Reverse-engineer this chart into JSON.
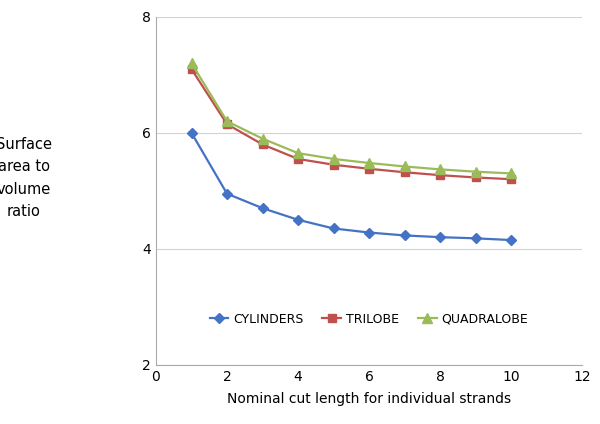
{
  "x": [
    1,
    2,
    3,
    4,
    5,
    6,
    7,
    8,
    9,
    10
  ],
  "cylinders": [
    6.0,
    4.95,
    4.7,
    4.5,
    4.35,
    4.28,
    4.23,
    4.2,
    4.18,
    4.15
  ],
  "trilobe": [
    7.1,
    6.15,
    5.8,
    5.55,
    5.45,
    5.38,
    5.32,
    5.27,
    5.23,
    5.2
  ],
  "quadralobe": [
    7.2,
    6.2,
    5.9,
    5.65,
    5.55,
    5.48,
    5.42,
    5.37,
    5.33,
    5.3
  ],
  "cylinder_color": "#4472C4",
  "trilobe_color": "#C0504D",
  "quadralobe_color": "#9BBB59",
  "cylinder_label": "CYLINDERS",
  "trilobe_label": "TRILOBE",
  "quadralobe_label": "QUADRALOBE",
  "xlabel": "Nominal cut length for individual strands",
  "ylabel_lines": [
    "Surface",
    "area to",
    "volume",
    "ratio"
  ],
  "xlim": [
    0,
    12
  ],
  "ylim": [
    2,
    8
  ],
  "xticks": [
    0,
    2,
    4,
    6,
    8,
    10,
    12
  ],
  "yticks": [
    2,
    4,
    6,
    8
  ],
  "grid_color": "#D3D3D3",
  "bg_color": "#FFFFFF",
  "spine_color": "#AAAAAA"
}
